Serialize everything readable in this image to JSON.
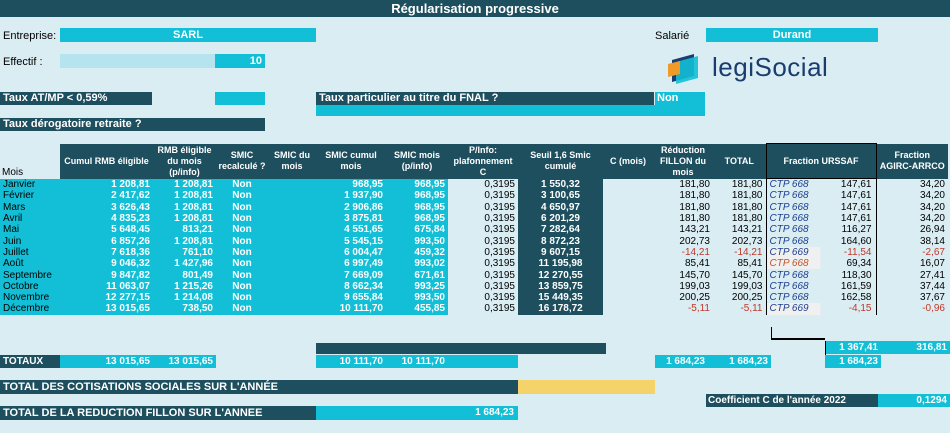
{
  "title": "Régularisation progressive",
  "entreprise": {
    "label": "Entreprise:",
    "value": "SARL"
  },
  "salarie": {
    "label": "Salarié",
    "value": "Durand"
  },
  "effectif": {
    "label": "Effectif :",
    "value": "10"
  },
  "taux_atmp": {
    "label": "Taux AT/MP < 0,59%"
  },
  "taux_fnal": {
    "label": "Taux particulier au titre du FNAL ?",
    "value": "Non"
  },
  "taux_retraite": {
    "label": "Taux dérogatoire retraite ?"
  },
  "logo": {
    "part1": "legi",
    "part2": "Social"
  },
  "columns": [
    "Mois",
    "Cumul RMB éligible",
    "RMB éligible du mois (p/info)",
    "SMIC recalculé ?",
    "SMIC du mois",
    "SMIC cumul mois",
    "SMIC mois (p/info)",
    "P/Info: plafonnement C",
    "Seuil 1,6 Smic cumulé",
    "C (mois)",
    "Réduction FILLON du mois",
    "TOTAL",
    "Fraction URSSAF",
    "Fraction AGIRC-ARRCO"
  ],
  "rows": [
    {
      "mois": "Janvier",
      "cumul": "1 208,81",
      "rmb": "1 208,81",
      "smic_recalc": "Non",
      "smic_cumul": "968,95",
      "smic_pinfo": "968,95",
      "plaf": "0,3195",
      "seuil": "1 550,32",
      "red": "181,80",
      "total": "181,80",
      "ctp": "CTP 668",
      "urssaf": "147,61",
      "agirc": "34,20"
    },
    {
      "mois": "Février",
      "cumul": "2 417,62",
      "rmb": "1 208,81",
      "smic_recalc": "Non",
      "smic_cumul": "1 937,90",
      "smic_pinfo": "968,95",
      "plaf": "0,3195",
      "seuil": "3 100,65",
      "red": "181,80",
      "total": "181,80",
      "ctp": "CTP 668",
      "urssaf": "147,61",
      "agirc": "34,20"
    },
    {
      "mois": "Mars",
      "cumul": "3 626,43",
      "rmb": "1 208,81",
      "smic_recalc": "Non",
      "smic_cumul": "2 906,86",
      "smic_pinfo": "968,95",
      "plaf": "0,3195",
      "seuil": "4 650,97",
      "red": "181,80",
      "total": "181,80",
      "ctp": "CTP 668",
      "urssaf": "147,61",
      "agirc": "34,20"
    },
    {
      "mois": "Avril",
      "cumul": "4 835,23",
      "rmb": "1 208,81",
      "smic_recalc": "Non",
      "smic_cumul": "3 875,81",
      "smic_pinfo": "968,95",
      "plaf": "0,3195",
      "seuil": "6 201,29",
      "red": "181,80",
      "total": "181,80",
      "ctp": "CTP 668",
      "urssaf": "147,61",
      "agirc": "34,20"
    },
    {
      "mois": "Mai",
      "cumul": "5 648,45",
      "rmb": "813,21",
      "smic_recalc": "Non",
      "smic_cumul": "4 551,65",
      "smic_pinfo": "675,84",
      "plaf": "0,3195",
      "seuil": "7 282,64",
      "red": "143,21",
      "total": "143,21",
      "ctp": "CTP 668",
      "urssaf": "116,27",
      "agirc": "26,94"
    },
    {
      "mois": "Juin",
      "cumul": "6 857,26",
      "rmb": "1 208,81",
      "smic_recalc": "Non",
      "smic_cumul": "5 545,15",
      "smic_pinfo": "993,50",
      "plaf": "0,3195",
      "seuil": "8 872,23",
      "red": "202,73",
      "total": "202,73",
      "ctp": "CTP 668",
      "urssaf": "164,60",
      "agirc": "38,14"
    },
    {
      "mois": "Juillet",
      "cumul": "7 618,36",
      "rmb": "761,10",
      "smic_recalc": "Non",
      "smic_cumul": "6 004,47",
      "smic_pinfo": "459,32",
      "plaf": "0,3195",
      "seuil": "9 607,15",
      "red": "-14,21",
      "total": "-14,21",
      "ctp": "CTP 669",
      "urssaf": "-11,54",
      "agirc": "-2,67"
    },
    {
      "mois": "Août",
      "cumul": "9 046,32",
      "rmb": "1 427,96",
      "smic_recalc": "Non",
      "smic_cumul": "6 997,49",
      "smic_pinfo": "993,02",
      "plaf": "0,3195",
      "seuil": "11 195,98",
      "red": "85,41",
      "total": "85,41",
      "ctp": "CTP 668",
      "urssaf": "69,34",
      "agirc": "16,07"
    },
    {
      "mois": "Septembre",
      "cumul": "9 847,82",
      "rmb": "801,49",
      "smic_recalc": "Non",
      "smic_cumul": "7 669,09",
      "smic_pinfo": "671,61",
      "plaf": "0,3195",
      "seuil": "12 270,55",
      "red": "145,70",
      "total": "145,70",
      "ctp": "CTP 668",
      "urssaf": "118,30",
      "agirc": "27,41"
    },
    {
      "mois": "Octobre",
      "cumul": "11 063,07",
      "rmb": "1 215,26",
      "smic_recalc": "Non",
      "smic_cumul": "8 662,34",
      "smic_pinfo": "993,25",
      "plaf": "0,3195",
      "seuil": "13 859,75",
      "red": "199,03",
      "total": "199,03",
      "ctp": "CTP 668",
      "urssaf": "161,59",
      "agirc": "37,44"
    },
    {
      "mois": "Novembre",
      "cumul": "12 277,15",
      "rmb": "1 214,08",
      "smic_recalc": "Non",
      "smic_cumul": "9 655,84",
      "smic_pinfo": "993,50",
      "plaf": "0,3195",
      "seuil": "15 449,35",
      "red": "200,25",
      "total": "200,25",
      "ctp": "CTP 668",
      "urssaf": "162,58",
      "agirc": "37,67"
    },
    {
      "mois": "Décembre",
      "cumul": "13 015,65",
      "rmb": "738,50",
      "smic_recalc": "Non",
      "smic_cumul": "10 111,70",
      "smic_pinfo": "455,85",
      "plaf": "0,3195",
      "seuil": "16 178,72",
      "red": "-5,11",
      "total": "-5,11",
      "ctp": "CTP 669",
      "urssaf": "-4,15",
      "agirc": "-0,96"
    }
  ],
  "subtotals": {
    "urssaf": "1 367,41",
    "agirc": "316,81"
  },
  "totaux": {
    "label": "TOTAUX",
    "cumul": "13 015,65",
    "rmb": "13 015,65",
    "smic_cumul": "10 111,70",
    "smic_pinfo": "10 111,70",
    "red": "1 684,23",
    "total": "1 684,23",
    "fraction": "1 684,23"
  },
  "total_cotisations": {
    "label": "TOTAL DES COTISATIONS SOCIALES SUR L'ANNÉE"
  },
  "total_reduction": {
    "label": "TOTAL DE LA REDUCTION FILLON SUR L'ANNEE",
    "value": "1 684,23"
  },
  "coefficient": {
    "label": "Coefficient C de l'année 2022",
    "value": "0,1294"
  },
  "colors": {
    "dark": "#1d4f5e",
    "cyan": "#12bfd6",
    "background": "#d9edf3",
    "yellow": "#f5d36b"
  }
}
